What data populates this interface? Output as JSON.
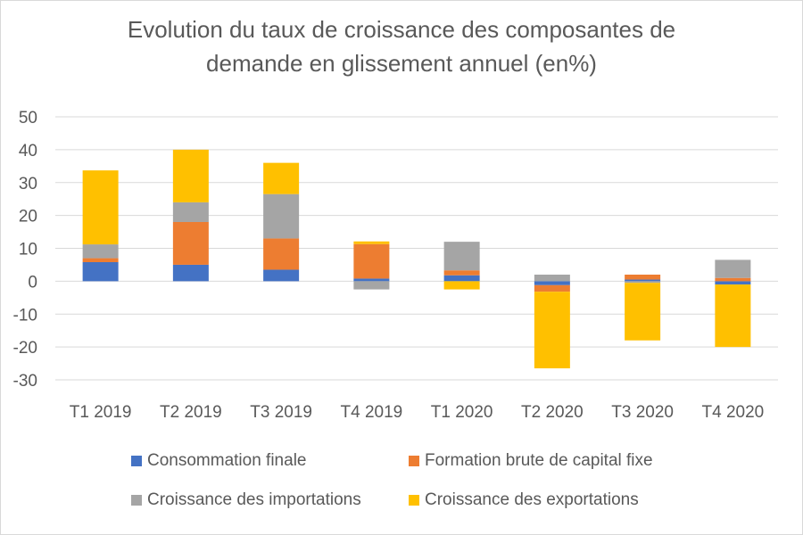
{
  "chart_data": {
    "type": "bar",
    "stacked": true,
    "title_line1": "Evolution du taux de croissance des composantes de",
    "title_line2": "demande en glissement annuel (en%)",
    "categories": [
      "T1 2019",
      "T2 2019",
      "T3 2019",
      "T4 2019",
      "T1 2020",
      "T2 2020",
      "T3 2020",
      "T4 2020"
    ],
    "ylim": [
      -30,
      50
    ],
    "yticks": [
      50,
      40,
      30,
      20,
      10,
      0,
      -10,
      -20,
      -30
    ],
    "grid": true,
    "legend_position": "bottom",
    "series": [
      {
        "name": "Consommation finale",
        "color": "#4472c4",
        "values": [
          5.8,
          5.0,
          3.5,
          0.8,
          1.8,
          -1.2,
          0.5,
          -1.0
        ]
      },
      {
        "name": "Formation brute de capital fixe",
        "color": "#ed7d31",
        "values": [
          1.2,
          13.0,
          9.5,
          10.5,
          1.5,
          -2.0,
          1.5,
          1.0
        ]
      },
      {
        "name": "Croissance des importations",
        "color": "#a5a5a5",
        "values": [
          4.2,
          6.0,
          13.5,
          -2.5,
          8.7,
          2.0,
          -0.5,
          5.5
        ]
      },
      {
        "name": "Croissance des exportations",
        "color": "#ffc000",
        "values": [
          22.5,
          16.0,
          9.5,
          0.8,
          -2.5,
          -23.3,
          -17.5,
          -19.0
        ]
      }
    ]
  }
}
